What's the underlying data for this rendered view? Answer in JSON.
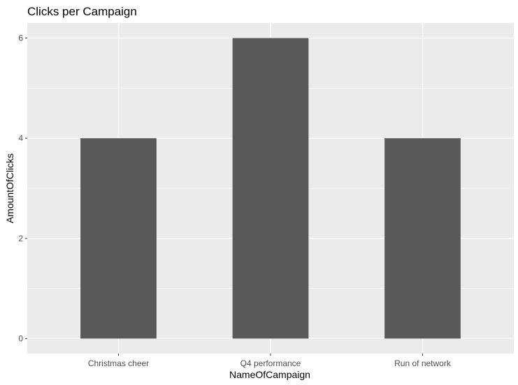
{
  "chart_data": {
    "type": "bar",
    "title": "Clicks per Campaign",
    "xlabel": "NameOfCampaign",
    "ylabel": "AmountOfClicks",
    "categories": [
      "Christmas cheer",
      "Q4 performance",
      "Run of network"
    ],
    "values": [
      4,
      6,
      4
    ],
    "yticks": [
      0,
      2,
      4,
      6
    ],
    "ylim": [
      -0.3,
      6.3
    ],
    "grid": true,
    "legend": "none",
    "colors": {
      "panel": "#ebebeb",
      "grid_major": "#ffffff",
      "bar": "#595959",
      "tick_text": "#4d4d4d",
      "tick_mark": "#333333"
    }
  }
}
